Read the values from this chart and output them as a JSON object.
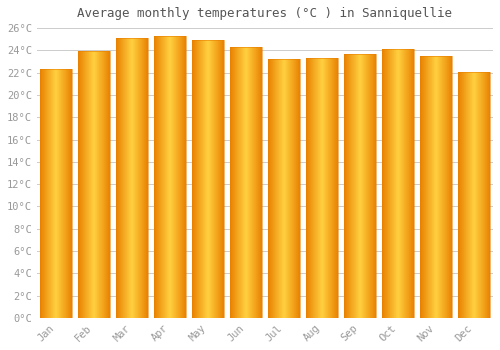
{
  "title": "Average monthly temperatures (°C ) in Sanniquellie",
  "months": [
    "Jan",
    "Feb",
    "Mar",
    "Apr",
    "May",
    "Jun",
    "Jul",
    "Aug",
    "Sep",
    "Oct",
    "Nov",
    "Dec"
  ],
  "values": [
    22.3,
    23.9,
    25.1,
    25.3,
    24.9,
    24.3,
    23.2,
    23.3,
    23.7,
    24.1,
    23.5,
    22.1
  ],
  "bar_color_center": "#FFD040",
  "bar_color_edge": "#E88000",
  "background_color": "#FFFFFF",
  "grid_color": "#CCCCCC",
  "tick_label_color": "#999999",
  "title_color": "#555555",
  "ylim": [
    0,
    26
  ],
  "yticks": [
    0,
    2,
    4,
    6,
    8,
    10,
    12,
    14,
    16,
    18,
    20,
    22,
    24,
    26
  ],
  "ytick_labels": [
    "0°C",
    "2°C",
    "4°C",
    "6°C",
    "8°C",
    "10°C",
    "12°C",
    "14°C",
    "16°C",
    "18°C",
    "20°C",
    "22°C",
    "24°C",
    "26°C"
  ],
  "bar_width": 0.85,
  "n_gradient_steps": 80,
  "figsize": [
    5.0,
    3.5
  ],
  "dpi": 100,
  "title_fontsize": 9,
  "tick_fontsize": 7.5
}
